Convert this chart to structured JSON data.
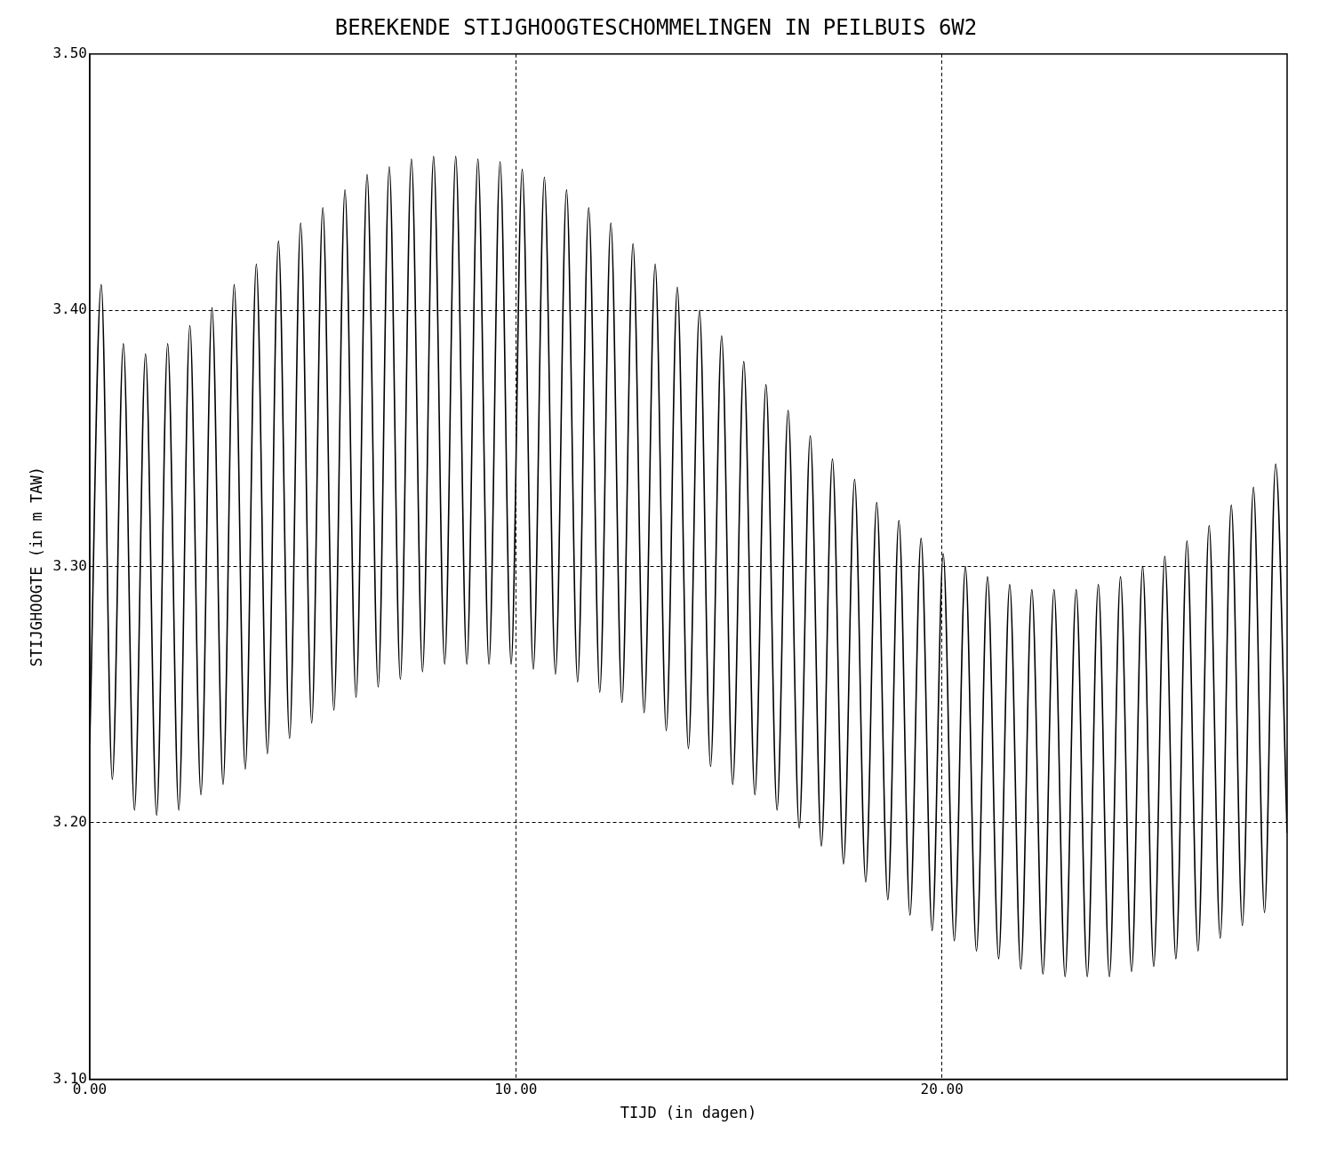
{
  "chart_data": {
    "type": "line",
    "title": "BEREKENDE STIJGHOOGTESCHOMMELINGEN IN PEILBUIS 6W2",
    "xlabel": "TIJD (in dagen)",
    "ylabel": "STIJGHOOGTE (in m TAW)",
    "xlim": [
      0,
      28.1
    ],
    "xticks": [
      {
        "value": 0,
        "label": "0.00"
      },
      {
        "value": 10,
        "label": "10.00"
      },
      {
        "value": 20,
        "label": "20.00"
      }
    ],
    "ylim": [
      3.1,
      3.5
    ],
    "yticks": [
      {
        "value": 3.1,
        "label": "3.10"
      },
      {
        "value": 3.2,
        "label": "3.20"
      },
      {
        "value": 3.3,
        "label": "3.30"
      },
      {
        "value": 3.4,
        "label": "3.40"
      },
      {
        "value": 3.5,
        "label": "3.50"
      }
    ],
    "grid": true,
    "legend": false,
    "marker": "none",
    "line_style": "solid",
    "x": [
      0,
      0.27,
      0.53,
      0.79,
      1.05,
      1.31,
      1.57,
      1.83,
      2.09,
      2.35,
      2.61,
      2.87,
      3.13,
      3.39,
      3.65,
      3.91,
      4.17,
      4.43,
      4.69,
      4.95,
      5.21,
      5.47,
      5.73,
      5.99,
      6.25,
      6.51,
      6.77,
      7.03,
      7.29,
      7.55,
      7.81,
      8.07,
      8.33,
      8.59,
      8.85,
      9.11,
      9.37,
      9.63,
      9.89,
      10.15,
      10.41,
      10.67,
      10.93,
      11.19,
      11.45,
      11.71,
      11.97,
      12.23,
      12.49,
      12.75,
      13.01,
      13.27,
      13.53,
      13.79,
      14.05,
      14.31,
      14.57,
      14.83,
      15.09,
      15.35,
      15.61,
      15.87,
      16.13,
      16.39,
      16.65,
      16.91,
      17.17,
      17.43,
      17.69,
      17.95,
      18.21,
      18.47,
      18.73,
      18.99,
      19.25,
      19.51,
      19.77,
      20.03,
      20.29,
      20.55,
      20.81,
      21.07,
      21.33,
      21.59,
      21.85,
      22.11,
      22.37,
      22.63,
      22.89,
      23.15,
      23.41,
      23.67,
      23.93,
      24.19,
      24.45,
      24.71,
      24.97,
      25.23,
      25.49,
      25.75,
      26.01,
      26.27,
      26.53,
      26.79,
      27.05,
      27.31,
      27.57,
      27.83,
      28.1
    ],
    "series": [
      {
        "color": "#000000",
        "values": [
          3.231,
          3.41,
          3.217,
          3.387,
          3.205,
          3.383,
          3.203,
          3.387,
          3.205,
          3.394,
          3.211,
          3.401,
          3.215,
          3.41,
          3.221,
          3.418,
          3.227,
          3.427,
          3.233,
          3.434,
          3.239,
          3.44,
          3.244,
          3.447,
          3.249,
          3.453,
          3.253,
          3.456,
          3.256,
          3.459,
          3.259,
          3.46,
          3.262,
          3.46,
          3.262,
          3.459,
          3.262,
          3.458,
          3.262,
          3.455,
          3.26,
          3.452,
          3.258,
          3.447,
          3.255,
          3.44,
          3.251,
          3.434,
          3.247,
          3.426,
          3.243,
          3.418,
          3.236,
          3.409,
          3.229,
          3.4,
          3.222,
          3.39,
          3.215,
          3.38,
          3.211,
          3.371,
          3.205,
          3.361,
          3.198,
          3.351,
          3.191,
          3.342,
          3.184,
          3.334,
          3.177,
          3.325,
          3.17,
          3.318,
          3.164,
          3.311,
          3.158,
          3.305,
          3.154,
          3.3,
          3.15,
          3.296,
          3.147,
          3.293,
          3.143,
          3.291,
          3.141,
          3.291,
          3.14,
          3.291,
          3.14,
          3.293,
          3.14,
          3.296,
          3.142,
          3.3,
          3.144,
          3.304,
          3.147,
          3.31,
          3.15,
          3.316,
          3.155,
          3.324,
          3.16,
          3.331,
          3.165,
          3.34,
          3.196
        ]
      }
    ]
  }
}
